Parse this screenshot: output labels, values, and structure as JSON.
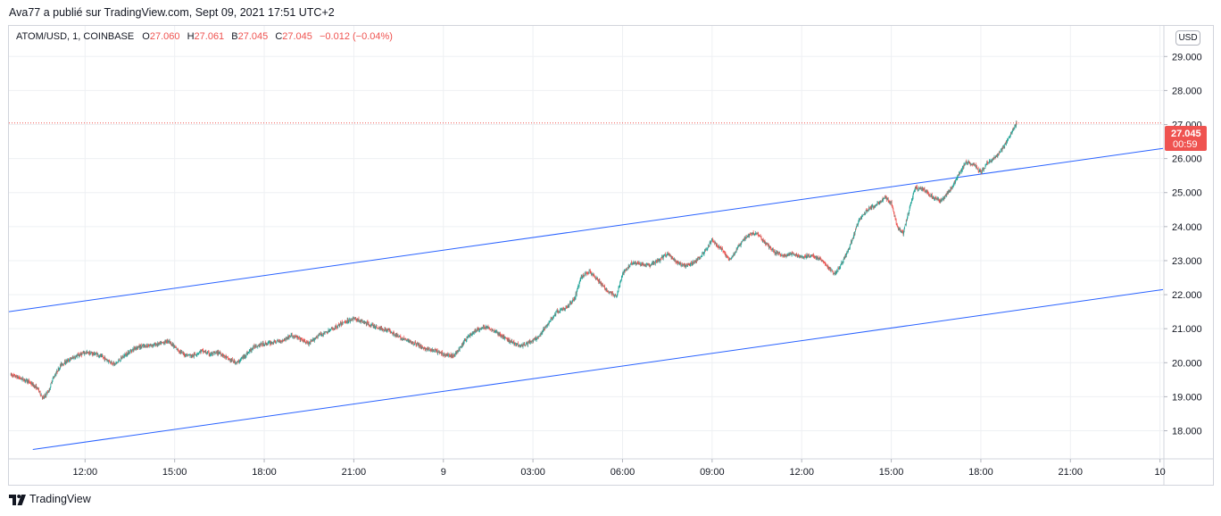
{
  "header": {
    "text": "Ava77 a  publié sur TradingView.com, Sept 09, 2021 17:51 UTC+2"
  },
  "legend": {
    "symbol": "ATOM/USD, 1, COINBASE",
    "open_label": "O",
    "open": "27.060",
    "high_label": "H",
    "high": "27.061",
    "low_label": "B",
    "low": "27.045",
    "close_label": "C",
    "close": "27.045",
    "change": "−0.012 (−0.04%)"
  },
  "currency_button": "USD",
  "price_label": {
    "price": "27.045",
    "countdown": "00:59"
  },
  "footer": {
    "brand": "TradingView",
    "logo_icon": "tradingview-logo-icon"
  },
  "colors": {
    "up": "#26a69a",
    "down": "#ef5350",
    "trendline": "#2962ff",
    "grid": "#eef0f3"
  },
  "chart_data": {
    "type": "candlestick",
    "title": "ATOM/USD, 1, COINBASE",
    "ylim": [
      17.2,
      29.9
    ],
    "y_ticks": [
      18,
      19,
      20,
      21,
      22,
      23,
      24,
      25,
      26,
      27,
      28,
      29
    ],
    "y_tick_labels": [
      "18.000",
      "19.000",
      "20.000",
      "21.000",
      "22.000",
      "23.000",
      "24.000",
      "25.000",
      "26.000",
      "27.000",
      "28.000",
      "29.000"
    ],
    "x_labels": [
      "12:00",
      "15:00",
      "18:00",
      "21:00",
      "9",
      "03:00",
      "06:00",
      "09:00",
      "12:00",
      "15:00",
      "18:00",
      "21:00",
      "10"
    ],
    "x_label_hours": [
      12,
      15,
      18,
      21,
      24,
      27,
      30,
      33,
      36,
      39,
      42,
      45,
      48
    ],
    "x_range_hours": [
      9.45,
      48.1
    ],
    "last_price": 27.045,
    "price_path": [
      [
        9.5,
        19.65
      ],
      [
        9.8,
        19.55
      ],
      [
        10.1,
        19.45
      ],
      [
        10.4,
        19.25
      ],
      [
        10.6,
        18.95
      ],
      [
        10.8,
        19.2
      ],
      [
        10.9,
        19.5
      ],
      [
        11.2,
        19.95
      ],
      [
        11.6,
        20.15
      ],
      [
        12.0,
        20.3
      ],
      [
        12.4,
        20.25
      ],
      [
        12.7,
        20.1
      ],
      [
        13.0,
        19.95
      ],
      [
        13.3,
        20.2
      ],
      [
        13.7,
        20.45
      ],
      [
        14.1,
        20.5
      ],
      [
        14.5,
        20.55
      ],
      [
        14.8,
        20.65
      ],
      [
        15.0,
        20.45
      ],
      [
        15.3,
        20.25
      ],
      [
        15.6,
        20.2
      ],
      [
        15.9,
        20.35
      ],
      [
        16.2,
        20.25
      ],
      [
        16.5,
        20.3
      ],
      [
        16.8,
        20.1
      ],
      [
        17.1,
        20.0
      ],
      [
        17.4,
        20.25
      ],
      [
        17.7,
        20.5
      ],
      [
        18.0,
        20.55
      ],
      [
        18.3,
        20.6
      ],
      [
        18.6,
        20.65
      ],
      [
        18.9,
        20.8
      ],
      [
        19.2,
        20.7
      ],
      [
        19.5,
        20.55
      ],
      [
        19.8,
        20.8
      ],
      [
        20.1,
        20.9
      ],
      [
        20.4,
        21.05
      ],
      [
        20.7,
        21.2
      ],
      [
        21.0,
        21.3
      ],
      [
        21.3,
        21.2
      ],
      [
        21.6,
        21.1
      ],
      [
        21.9,
        21.0
      ],
      [
        22.2,
        20.95
      ],
      [
        22.5,
        20.75
      ],
      [
        22.8,
        20.65
      ],
      [
        23.1,
        20.55
      ],
      [
        23.4,
        20.4
      ],
      [
        23.7,
        20.35
      ],
      [
        24.0,
        20.25
      ],
      [
        24.3,
        20.2
      ],
      [
        24.5,
        20.35
      ],
      [
        24.8,
        20.75
      ],
      [
        25.1,
        20.95
      ],
      [
        25.4,
        21.05
      ],
      [
        25.7,
        20.95
      ],
      [
        26.0,
        20.75
      ],
      [
        26.3,
        20.6
      ],
      [
        26.6,
        20.5
      ],
      [
        26.9,
        20.6
      ],
      [
        27.2,
        20.75
      ],
      [
        27.5,
        21.15
      ],
      [
        27.8,
        21.5
      ],
      [
        28.1,
        21.6
      ],
      [
        28.4,
        21.9
      ],
      [
        28.6,
        22.5
      ],
      [
        28.9,
        22.7
      ],
      [
        29.2,
        22.4
      ],
      [
        29.5,
        22.1
      ],
      [
        29.8,
        21.95
      ],
      [
        30.0,
        22.6
      ],
      [
        30.3,
        22.95
      ],
      [
        30.6,
        22.9
      ],
      [
        30.9,
        22.85
      ],
      [
        31.2,
        23.0
      ],
      [
        31.5,
        23.2
      ],
      [
        31.8,
        22.95
      ],
      [
        32.1,
        22.85
      ],
      [
        32.4,
        22.95
      ],
      [
        32.7,
        23.2
      ],
      [
        33.0,
        23.6
      ],
      [
        33.3,
        23.35
      ],
      [
        33.6,
        23.0
      ],
      [
        33.9,
        23.45
      ],
      [
        34.2,
        23.75
      ],
      [
        34.5,
        23.8
      ],
      [
        34.8,
        23.5
      ],
      [
        35.1,
        23.25
      ],
      [
        35.4,
        23.15
      ],
      [
        35.7,
        23.2
      ],
      [
        36.0,
        23.1
      ],
      [
        36.3,
        23.15
      ],
      [
        36.6,
        23.05
      ],
      [
        36.9,
        22.8
      ],
      [
        37.1,
        22.6
      ],
      [
        37.3,
        22.85
      ],
      [
        37.6,
        23.4
      ],
      [
        37.9,
        24.15
      ],
      [
        38.2,
        24.5
      ],
      [
        38.5,
        24.65
      ],
      [
        38.8,
        24.85
      ],
      [
        39.0,
        24.7
      ],
      [
        39.2,
        24.0
      ],
      [
        39.4,
        23.8
      ],
      [
        39.6,
        24.5
      ],
      [
        39.8,
        25.15
      ],
      [
        40.1,
        25.1
      ],
      [
        40.4,
        24.85
      ],
      [
        40.7,
        24.75
      ],
      [
        40.9,
        25.0
      ],
      [
        41.1,
        25.25
      ],
      [
        41.3,
        25.6
      ],
      [
        41.5,
        25.9
      ],
      [
        41.8,
        25.8
      ],
      [
        42.0,
        25.6
      ],
      [
        42.2,
        25.85
      ],
      [
        42.5,
        26.05
      ],
      [
        42.8,
        26.4
      ],
      [
        43.0,
        26.75
      ],
      [
        43.2,
        27.05
      ]
    ],
    "trendlines": [
      {
        "name": "upper",
        "from": [
          9.45,
          21.5
        ],
        "to": [
          48.1,
          26.3
        ]
      },
      {
        "name": "lower",
        "from": [
          10.25,
          17.45
        ],
        "to": [
          48.1,
          22.15
        ]
      }
    ]
  }
}
